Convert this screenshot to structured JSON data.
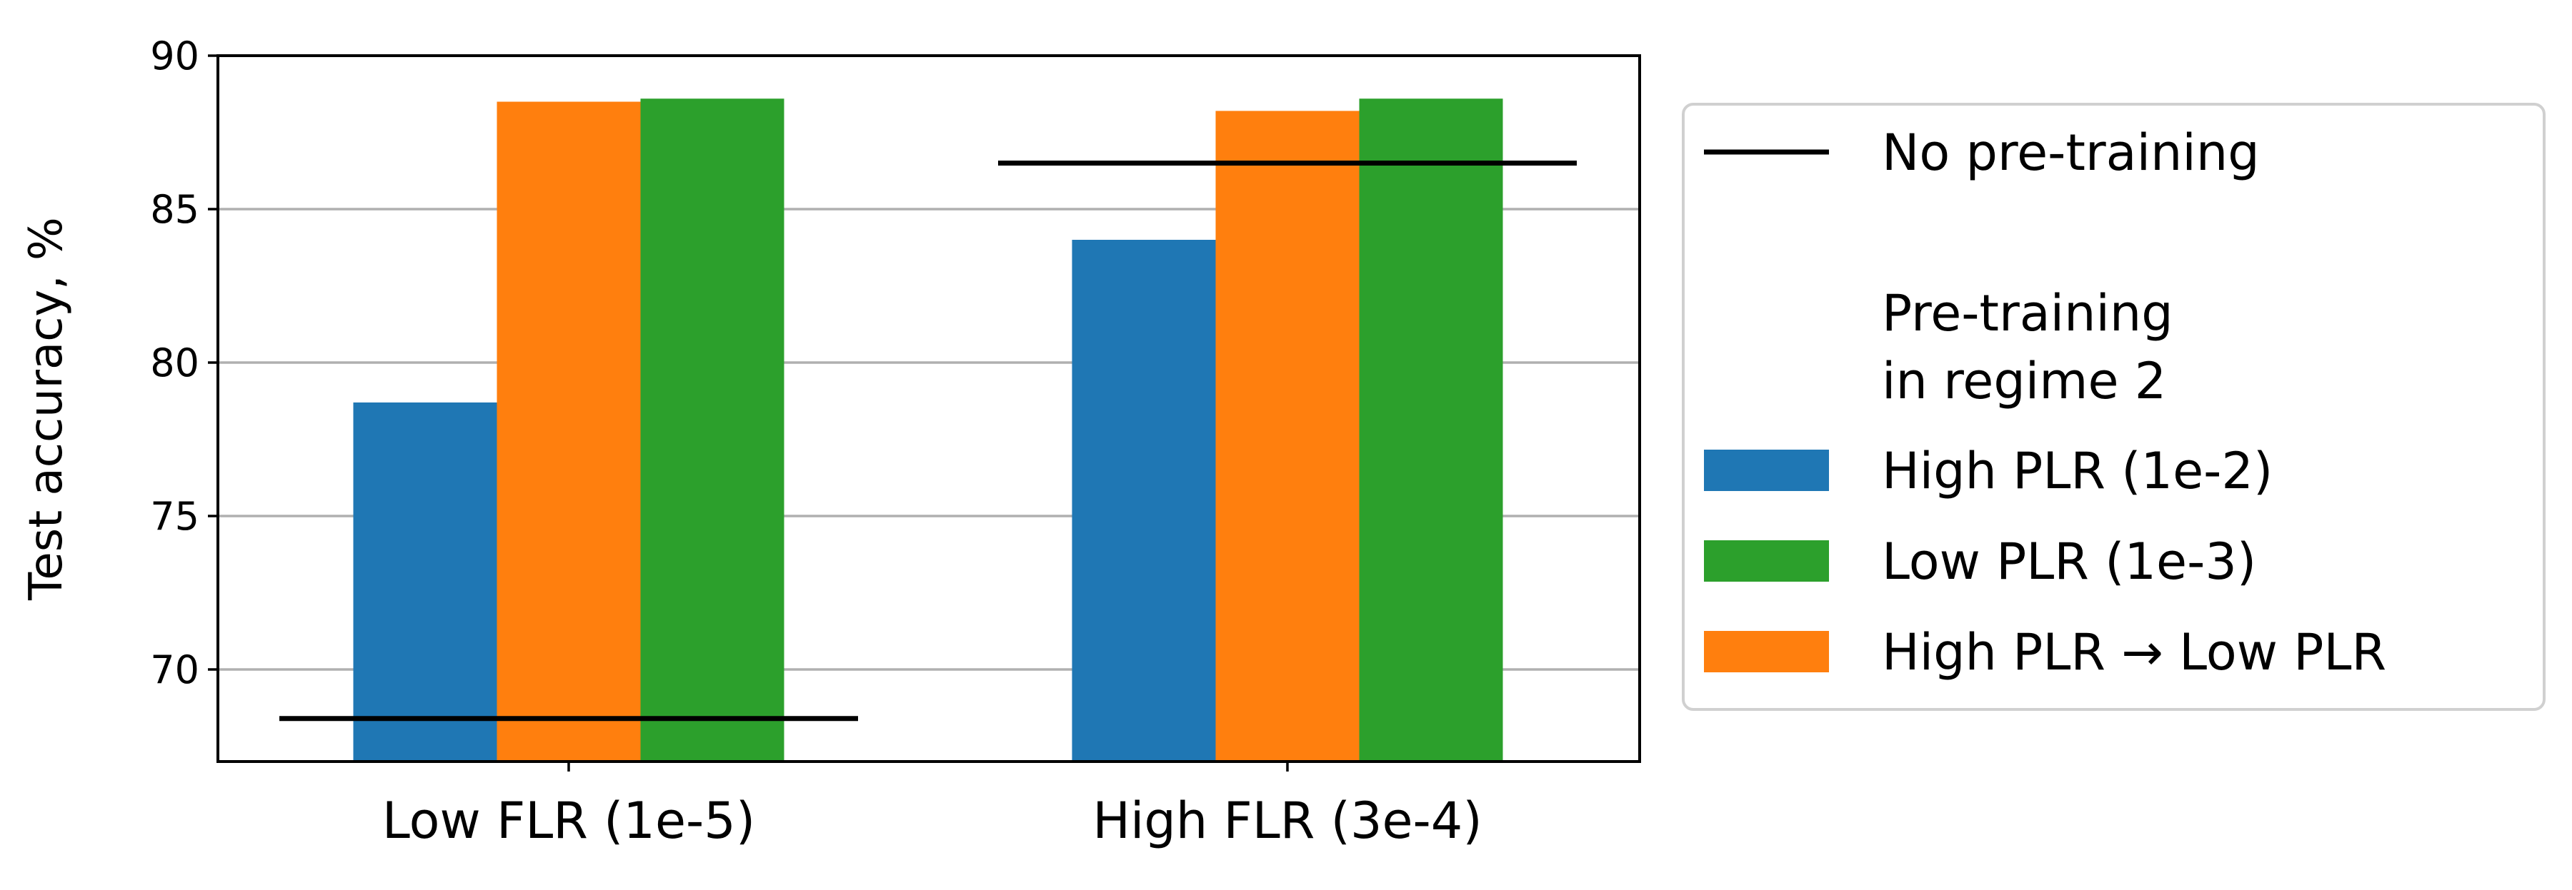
{
  "chart_data": {
    "type": "bar",
    "categories": [
      "Low FLR (1e-5)",
      "High FLR (3e-4)"
    ],
    "series": [
      {
        "name": "High PLR (1e-2)",
        "values": [
          78.7,
          84.0
        ],
        "color": "#1f77b4"
      },
      {
        "name": "High PLR → Low PLR",
        "values": [
          88.5,
          88.2
        ],
        "color": "#ff7f0e"
      },
      {
        "name": "Low PLR (1e-3)",
        "values": [
          88.6,
          88.6
        ],
        "color": "#2ca02c"
      }
    ],
    "reference_lines": [
      {
        "name": "No pre-training",
        "values": [
          68.4,
          86.5
        ],
        "color": "#000000"
      }
    ],
    "xlabel": "",
    "ylabel": "Test accuracy, %",
    "ylim": [
      67,
      90
    ],
    "yticks": [
      70,
      75,
      80,
      85,
      90
    ],
    "grid": "horizontal",
    "legend": {
      "placement": "right-outside",
      "header": "Pre-training\nin regime 2",
      "order": [
        "No pre-training",
        "header",
        "High PLR (1e-2)",
        "Low PLR (1e-3)",
        "High PLR → Low PLR"
      ]
    }
  }
}
